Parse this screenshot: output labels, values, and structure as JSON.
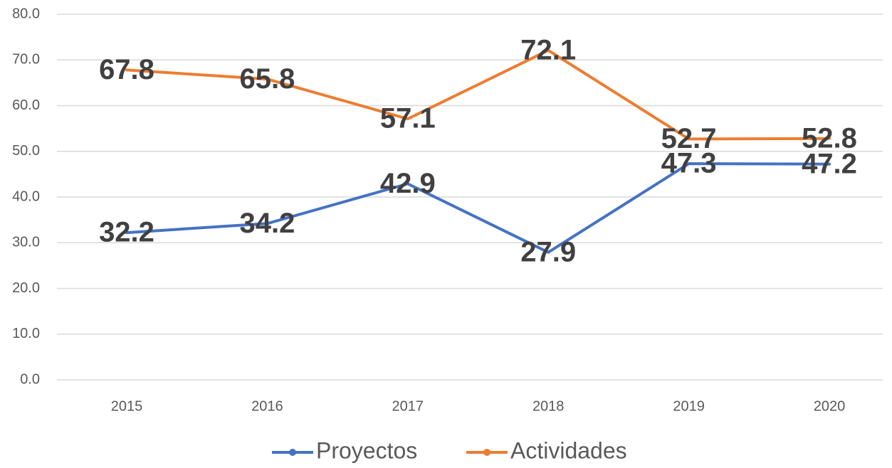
{
  "chart_data": {
    "type": "line",
    "categories": [
      "2015",
      "2016",
      "2017",
      "2018",
      "2019",
      "2020"
    ],
    "series": [
      {
        "name": "Proyectos",
        "color": "#4472c4",
        "values": [
          32.2,
          34.2,
          42.9,
          27.9,
          47.3,
          47.2
        ]
      },
      {
        "name": "Actividades",
        "color": "#ed7d31",
        "values": [
          67.8,
          65.8,
          57.1,
          72.1,
          52.7,
          52.8
        ]
      }
    ],
    "ylim": [
      0,
      80
    ],
    "yticks": [
      {
        "value": 0,
        "label": "0.0"
      },
      {
        "value": 10,
        "label": "10.0"
      },
      {
        "value": 20,
        "label": "20.0"
      },
      {
        "value": 30,
        "label": "30.0"
      },
      {
        "value": 40,
        "label": "40.0"
      },
      {
        "value": 50,
        "label": "50.0"
      },
      {
        "value": 60,
        "label": "60.0"
      },
      {
        "value": 70,
        "label": "70.0"
      },
      {
        "value": 80,
        "label": "80.0"
      }
    ],
    "grid": true,
    "legend": "bottom"
  }
}
